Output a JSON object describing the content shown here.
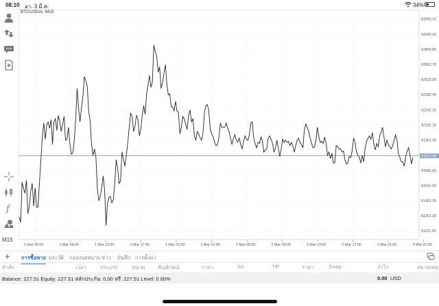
{
  "status": {
    "time": "08:10",
    "date": "อา. 3 มี.ค.",
    "battery": "34%",
    "battery_level": 0.34
  },
  "icons": {
    "sidebar": [
      "person-icon",
      "up-down-arrows-icon",
      "chat-bubble-icon",
      "news-document-icon",
      "crosshair-icon",
      "candlestick-indicator-icon",
      "function-icon",
      "objects-icon"
    ],
    "tabs_right": "chat-icon",
    "status_right": [
      "wifi-icon",
      "battery-icon"
    ]
  },
  "sidebar": {
    "timeframe": "M15"
  },
  "chart": {
    "title": "BTCUSDm, M15",
    "current_price": "61815.68"
  },
  "chart_data": {
    "type": "line",
    "symbol": "BTCUSDm",
    "timeframe": "M15",
    "ylim": [
      61040,
      63170
    ],
    "y_ticks": [
      "63083.15",
      "62943.00",
      "62802.85",
      "62662.70",
      "62522.55",
      "62382.40",
      "62242.25",
      "62102.10",
      "61961.95",
      "61815.68",
      "61681.65",
      "61541.50",
      "61401.35",
      "61261.20",
      "61121.05"
    ],
    "x_ticks": [
      "1 Mar 05:00",
      "1 Mar 09:00",
      "1 Mar 13:00",
      "1 Mar 17:00",
      "1 Mar 21:00",
      "2 Mar 01:00",
      "2 Mar 05:00",
      "2 Mar 09:00",
      "2 Mar 13:00",
      "2 Mar 17:00",
      "2 Mar 21:00",
      "3 Mar 01:00"
    ],
    "current_price": 61815.68,
    "values": [
      61250,
      61200,
      61570,
      61510,
      61470,
      61590,
      61280,
      61350,
      61490,
      61560,
      61350,
      61520,
      61340,
      61340,
      61570,
      61780,
      62000,
      62120,
      61970,
      62100,
      62130,
      62070,
      62150,
      61920,
      62130,
      62160,
      62050,
      62190,
      62140,
      62040,
      62110,
      62180,
      61960,
      61970,
      62080,
      61930,
      61830,
      61840,
      61950,
      62150,
      62440,
      62260,
      62130,
      62260,
      62360,
      62550,
      62510,
      62460,
      62230,
      62140,
      61920,
      61820,
      61880,
      61800,
      61510,
      61400,
      61440,
      61520,
      61630,
      61500,
      61170,
      61380,
      61430,
      61440,
      61380,
      61410,
      61560,
      61780,
      61700,
      61560,
      61580,
      61850,
      61790,
      61720,
      61820,
      61940,
      62080,
      62210,
      62180,
      62040,
      62090,
      62190,
      62160,
      62000,
      62060,
      62190,
      62280,
      62200,
      62390,
      62470,
      62560,
      62450,
      62500,
      62840,
      62780,
      62740,
      62590,
      62640,
      62440,
      62490,
      62580,
      62660,
      62480,
      62380,
      62390,
      62270,
      62270,
      62230,
      62320,
      62230,
      62220,
      62020,
      62080,
      62180,
      62160,
      62110,
      62060,
      62190,
      62240,
      62130,
      62160,
      62000,
      61960,
      62040,
      62020,
      61980,
      61960,
      62030,
      62220,
      62280,
      62290,
      62230,
      62060,
      62020,
      61990,
      61940,
      61910,
      61920,
      61990,
      62120,
      62080,
      62080,
      62080,
      62120,
      62070,
      62040,
      61980,
      61920,
      61980,
      62010,
      61960,
      61940,
      61980,
      61920,
      61880,
      61950,
      62000,
      61970,
      61960,
      62010,
      62120,
      62130,
      61980,
      61930,
      61890,
      61940,
      61930,
      61990,
      61950,
      61850,
      61870,
      61880,
      61980,
      62000,
      61970,
      61930,
      61850,
      61890,
      61960,
      61890,
      61810,
      61880,
      61970,
      61940,
      61960,
      61940,
      61950,
      61910,
      61940,
      61910,
      61850,
      61910,
      61960,
      61980,
      61940,
      61920,
      61890,
      62060,
      62110,
      62080,
      62040,
      61980,
      61930,
      61890,
      61900,
      61960,
      62080,
      61990,
      61940,
      61950,
      61930,
      61990,
      61930,
      61820,
      61850,
      61790,
      61840,
      61750,
      61750,
      61910,
      61900,
      61880,
      61880,
      61850,
      61860,
      61780,
      61740,
      61750,
      61810,
      61800,
      61860,
      61980,
      61940,
      61850,
      61820,
      61800,
      61750,
      61820,
      61760,
      61890,
      61950,
      61980,
      62000,
      61970,
      62030,
      61920,
      61870,
      61930,
      61900,
      62000,
      62030,
      62080,
      61990,
      61900,
      61960,
      61920,
      61900,
      61880,
      61910,
      61960,
      62010,
      61960,
      61830,
      61800,
      61760,
      61760,
      61720,
      61810,
      61860,
      61890,
      61820,
      61740,
      61800
    ]
  },
  "tabs": [
    {
      "label": "การซื้อขาย",
      "active": true
    },
    {
      "label": "ประวัติ"
    },
    {
      "label": "กล่องจดหมาย"
    },
    {
      "label": "ข่าว"
    },
    {
      "label": "บันทึก"
    },
    {
      "label": "การตั้งค่า"
    }
  ],
  "columns": [
    "คำสั่ง",
    "เวลา",
    "ประเภท",
    "ขนาด",
    "สัญลักษณ์",
    "ราคา",
    "S/L",
    "T/P",
    "ราคา",
    "Swap",
    "กำไร",
    "หมายเหตุ"
  ],
  "balance": {
    "text": "Balance: 227.51 Equity: 227.51 หลักประกัน: 0.00 ฟรี: 227.51 Level: 0.00%",
    "profit": "0.00",
    "currency": "USD"
  }
}
